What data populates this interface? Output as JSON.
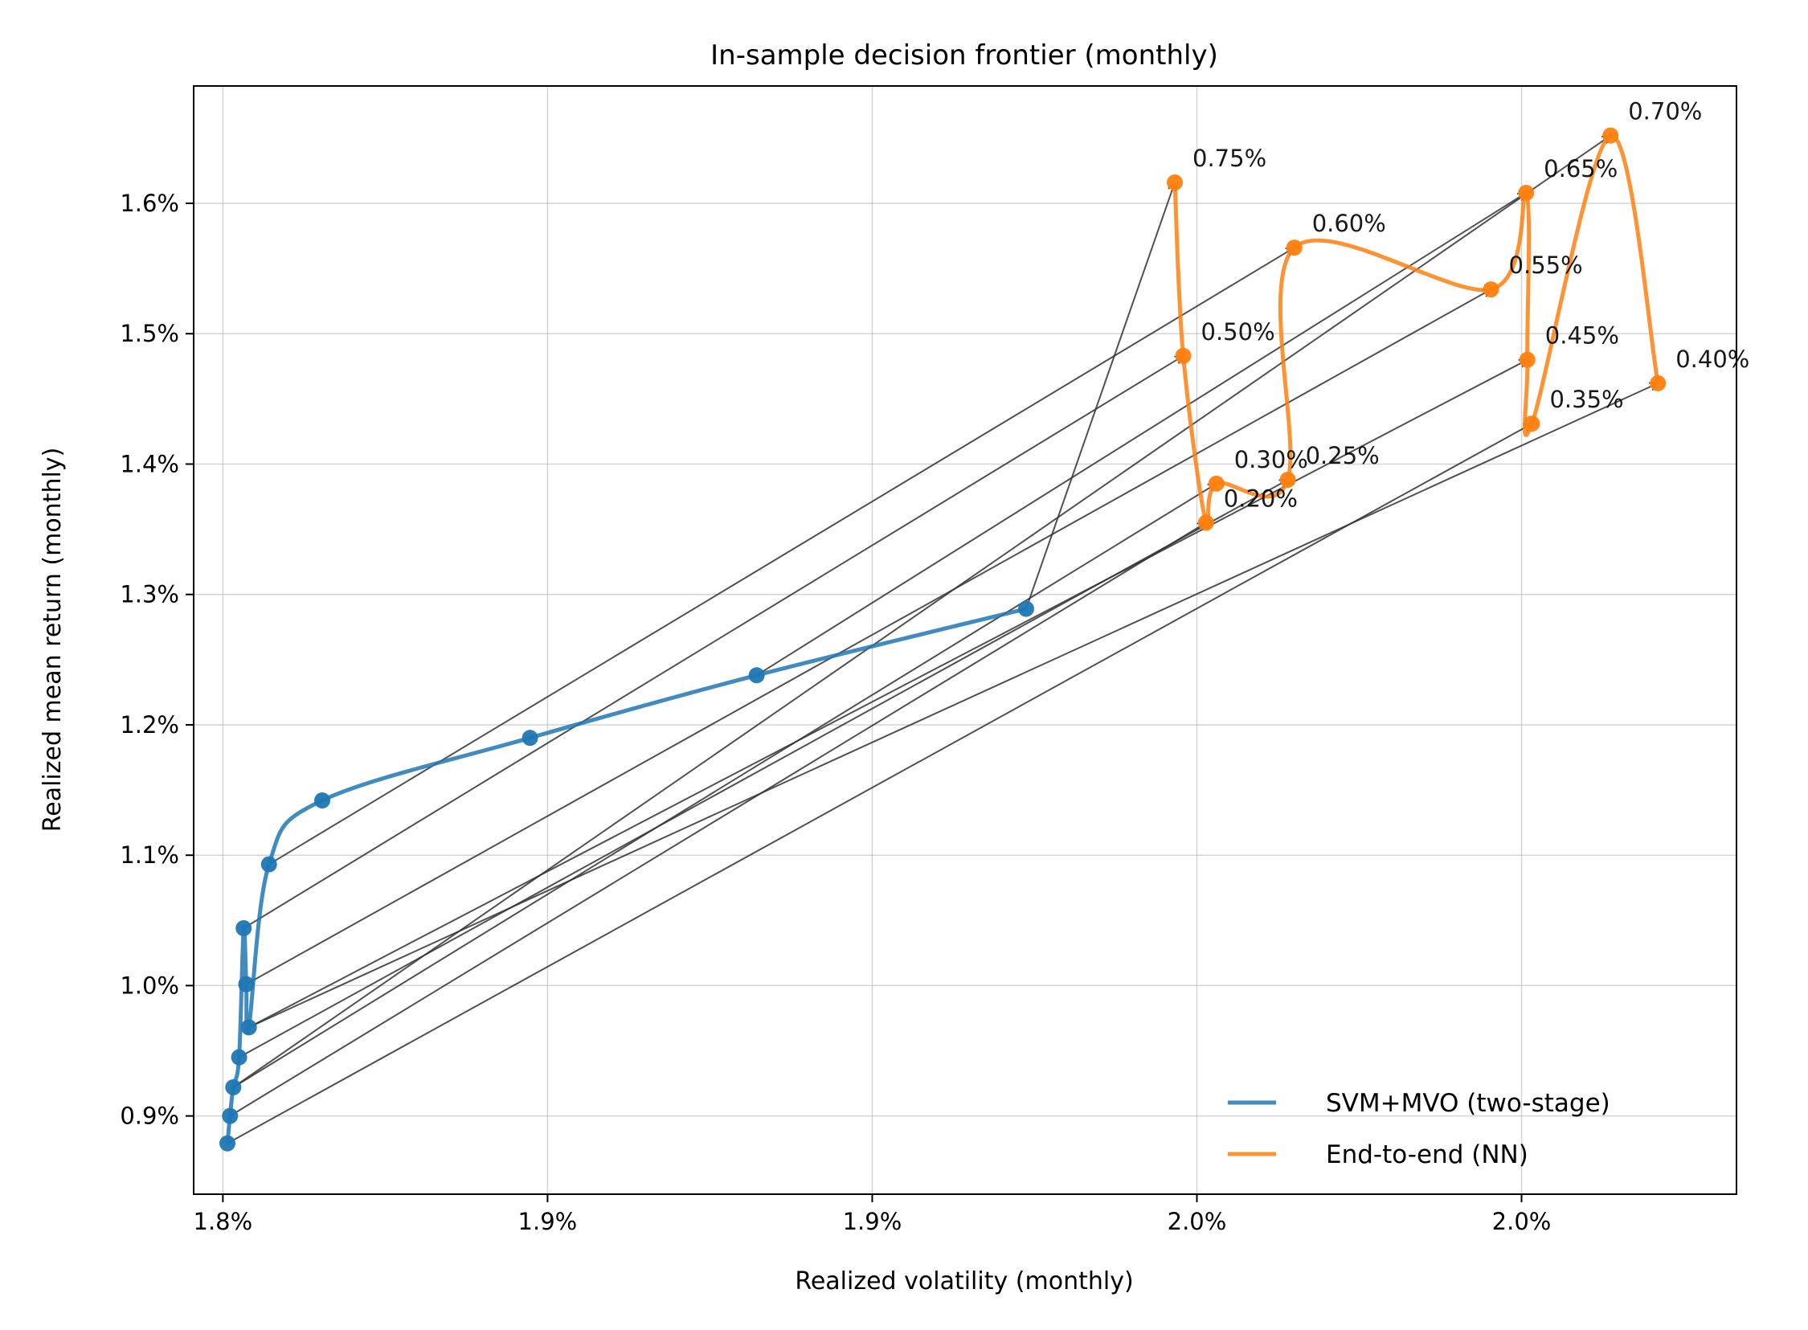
{
  "chart_data": {
    "type": "line",
    "title": "In-sample decision frontier (monthly)",
    "xlabel": "Realized volatility (monthly)",
    "ylabel": "Realized mean return (monthly)",
    "xlim": [
      1.8155,
      2.0531
    ],
    "ylim": [
      0.84,
      1.69
    ],
    "x_ticks": [
      {
        "value": 1.82,
        "label": "1.8%"
      },
      {
        "value": 1.87,
        "label": "1.9%"
      },
      {
        "value": 1.92,
        "label": "1.9%"
      },
      {
        "value": 1.97,
        "label": "2.0%"
      },
      {
        "value": 2.02,
        "label": "2.0%"
      }
    ],
    "y_ticks": [
      {
        "value": 0.9,
        "label": "0.9%"
      },
      {
        "value": 1.0,
        "label": "1.0%"
      },
      {
        "value": 1.1,
        "label": "1.1%"
      },
      {
        "value": 1.2,
        "label": "1.2%"
      },
      {
        "value": 1.3,
        "label": "1.3%"
      },
      {
        "value": 1.4,
        "label": "1.4%"
      },
      {
        "value": 1.5,
        "label": "1.5%"
      },
      {
        "value": 1.6,
        "label": "1.6%"
      }
    ],
    "grid": true,
    "legend_position": "lower-right",
    "series": [
      {
        "name": "SVM+MVO (two-stage)",
        "color": "#1f77b4",
        "points": [
          {
            "x": 1.8207,
            "y": 0.879
          },
          {
            "x": 1.8211,
            "y": 0.9
          },
          {
            "x": 1.8216,
            "y": 0.922
          },
          {
            "x": 1.8225,
            "y": 0.945
          },
          {
            "x": 1.8232,
            "y": 1.044
          },
          {
            "x": 1.8236,
            "y": 1.001
          },
          {
            "x": 1.824,
            "y": 0.968
          },
          {
            "x": 1.8271,
            "y": 1.093
          },
          {
            "x": 1.8353,
            "y": 1.142
          },
          {
            "x": 1.8673,
            "y": 1.19
          },
          {
            "x": 1.9022,
            "y": 1.238
          },
          {
            "x": 1.9437,
            "y": 1.289
          }
        ]
      },
      {
        "name": "End-to-end (NN)",
        "color": "#ff7f0e",
        "points": [
          {
            "x": 1.9666,
            "y": 1.616,
            "label": "0.75%"
          },
          {
            "x": 1.9679,
            "y": 1.483,
            "label": "0.50%"
          },
          {
            "x": 1.9714,
            "y": 1.355,
            "label": "0.20%"
          },
          {
            "x": 1.973,
            "y": 1.385,
            "label": "0.30%"
          },
          {
            "x": 1.984,
            "y": 1.388,
            "label": "0.25%"
          },
          {
            "x": 1.985,
            "y": 1.566,
            "label": "0.60%"
          },
          {
            "x": 2.0153,
            "y": 1.534,
            "label": "0.55%"
          },
          {
            "x": 2.0207,
            "y": 1.608,
            "label": "0.65%"
          },
          {
            "x": 2.0209,
            "y": 1.48,
            "label": "0.45%"
          },
          {
            "x": 2.0216,
            "y": 1.431,
            "label": "0.35%"
          },
          {
            "x": 2.0337,
            "y": 1.652,
            "label": "0.70%"
          },
          {
            "x": 2.041,
            "y": 1.462,
            "label": "0.40%"
          }
        ]
      }
    ],
    "arrows": [
      {
        "from": [
          1.8207,
          0.879
        ],
        "to": [
          2.0216,
          1.431
        ]
      },
      {
        "from": [
          1.8211,
          0.9
        ],
        "to": [
          1.9714,
          1.355
        ]
      },
      {
        "from": [
          1.8216,
          0.922
        ],
        "to": [
          1.973,
          1.385
        ]
      },
      {
        "from": [
          1.8225,
          0.945
        ],
        "to": [
          1.984,
          1.388
        ]
      },
      {
        "from": [
          1.8232,
          1.044
        ],
        "to": [
          1.9679,
          1.483
        ]
      },
      {
        "from": [
          1.8236,
          1.001
        ],
        "to": [
          2.0153,
          1.534
        ]
      },
      {
        "from": [
          1.824,
          0.968
        ],
        "to": [
          2.0209,
          1.48
        ]
      },
      {
        "from": [
          1.8271,
          1.093
        ],
        "to": [
          1.985,
          1.566
        ]
      },
      {
        "from": [
          1.9022,
          1.238
        ],
        "to": [
          2.0207,
          1.608
        ]
      },
      {
        "from": [
          1.9437,
          1.289
        ],
        "to": [
          1.9666,
          1.616
        ]
      },
      {
        "from": [
          1.8216,
          0.922
        ],
        "to": [
          2.0337,
          1.652
        ]
      },
      {
        "from": [
          1.824,
          0.968
        ],
        "to": [
          2.041,
          1.462
        ]
      }
    ]
  }
}
